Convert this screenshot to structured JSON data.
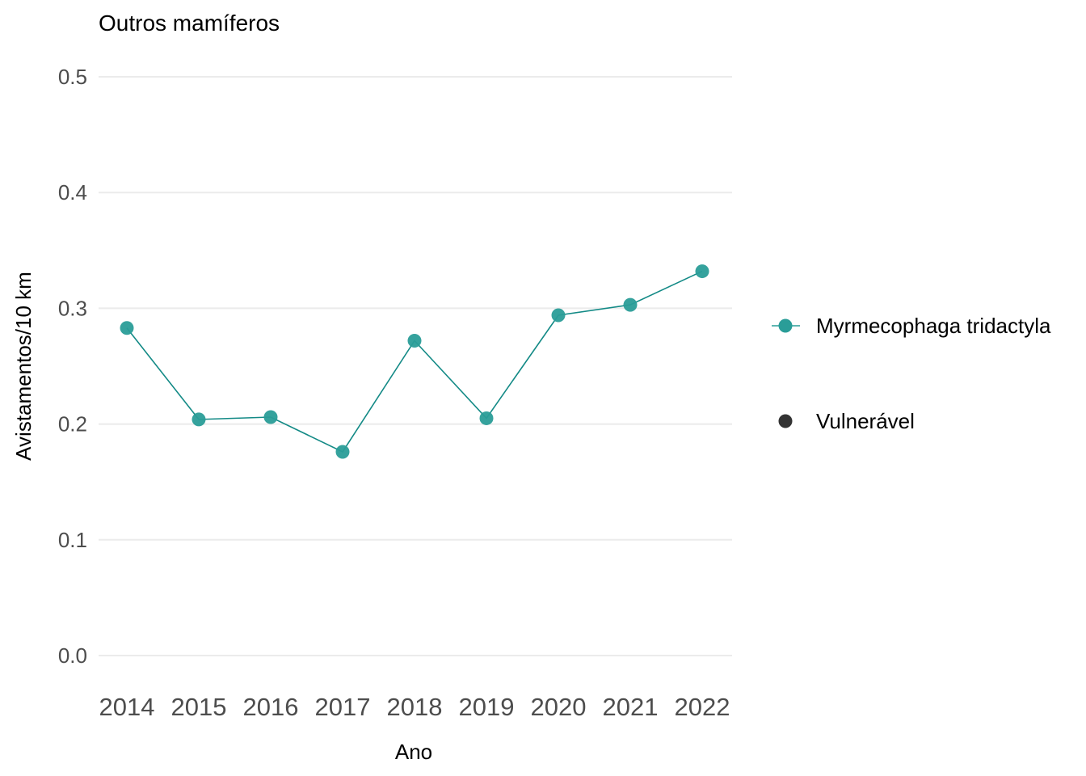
{
  "chart_data": {
    "type": "line",
    "title": "Outros mamíferos",
    "xlabel": "Ano",
    "ylabel": "Avistamentos/10 km",
    "x": [
      "2014",
      "2015",
      "2016",
      "2017",
      "2018",
      "2019",
      "2020",
      "2021",
      "2022"
    ],
    "yticks": [
      "0.0",
      "0.1",
      "0.2",
      "0.3",
      "0.4",
      "0.5"
    ],
    "ylim": [
      0,
      0.5
    ],
    "grid": true,
    "legend_position": "right",
    "series": [
      {
        "name": "Myrmecophaga tridactyla",
        "color": "#2a9d98",
        "line_color": "#138a86",
        "values": [
          0.283,
          0.204,
          0.206,
          0.176,
          0.272,
          0.205,
          0.294,
          0.303,
          0.332
        ]
      }
    ],
    "legend": [
      {
        "label": "Myrmecophaga tridactyla",
        "kind": "line-point",
        "color": "#2a9d98"
      },
      {
        "label": "Vulnerável",
        "kind": "point",
        "color": "#333333"
      }
    ]
  }
}
